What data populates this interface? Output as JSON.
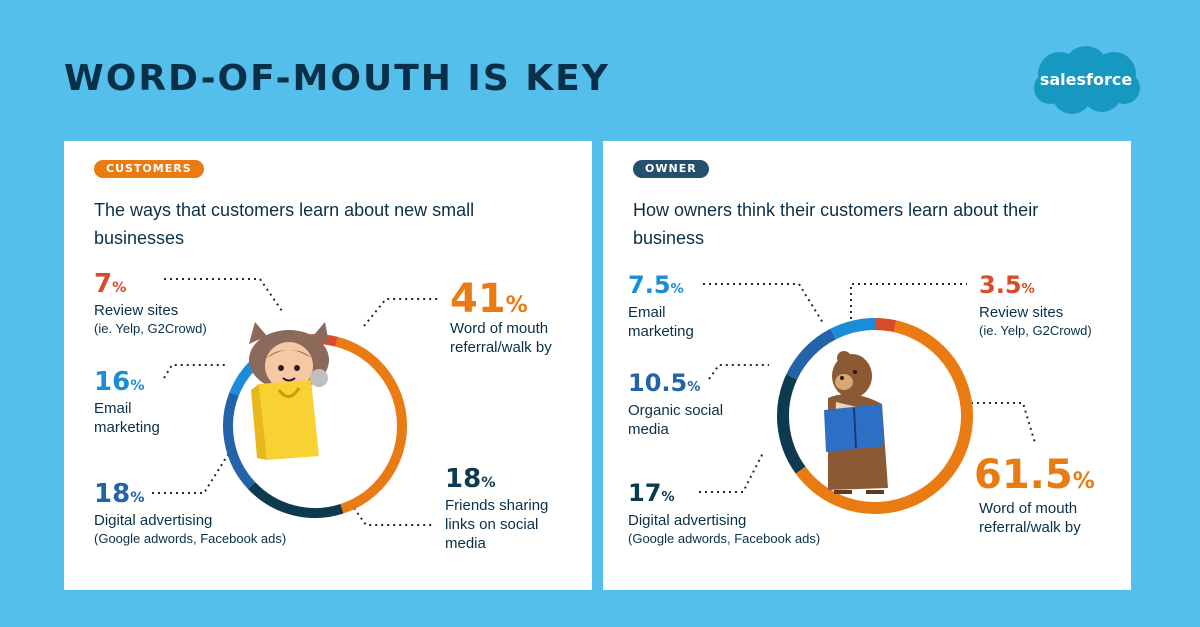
{
  "title": "WORD-OF-MOUTH IS KEY",
  "brand": "salesforce",
  "colors": {
    "orange": "#ea7a12",
    "red": "#d74c2b",
    "light_blue": "#1b8dd8",
    "mid_blue": "#2463a9",
    "navy": "#0e3a4f",
    "text": "#0a3049",
    "background": "#54bfea"
  },
  "chart_data": [
    {
      "type": "pie",
      "badge": "CUSTOMERS",
      "title": "The ways that customers learn about new small businesses",
      "series": [
        {
          "label": "Word of mouth referral/walk by",
          "value": 41,
          "display": "41",
          "color": "#ea7a12"
        },
        {
          "label": "Friends sharing links on social media",
          "value": 18,
          "display": "18",
          "color": "#0e3a4f"
        },
        {
          "label": "Digital advertising",
          "sub": "(Google adwords, Facebook ads)",
          "value": 18,
          "display": "18",
          "color": "#2463a9"
        },
        {
          "label": "Email marketing",
          "value": 16,
          "display": "16",
          "color": "#1b8dd8"
        },
        {
          "label": "Review sites",
          "sub": "(ie. Yelp, G2Crowd)",
          "value": 7,
          "display": "7",
          "color": "#d74c2b"
        }
      ]
    },
    {
      "type": "pie",
      "badge": "OWNER",
      "title": "How owners think their customers learn about their business",
      "series": [
        {
          "label": "Word of mouth referral/walk by",
          "value": 61.5,
          "display": "61.5",
          "color": "#ea7a12"
        },
        {
          "label": "Digital advertising",
          "sub": "(Google adwords, Facebook ads)",
          "value": 17,
          "display": "17",
          "color": "#0e3a4f"
        },
        {
          "label": "Organic social media",
          "value": 10.5,
          "display": "10.5",
          "color": "#2463a9"
        },
        {
          "label": "Email marketing",
          "value": 7.5,
          "display": "7.5",
          "color": "#1b8dd8"
        },
        {
          "label": "Review sites",
          "sub": "(ie. Yelp, G2Crowd)",
          "value": 3.5,
          "display": "3.5",
          "color": "#d74c2b"
        }
      ]
    }
  ]
}
